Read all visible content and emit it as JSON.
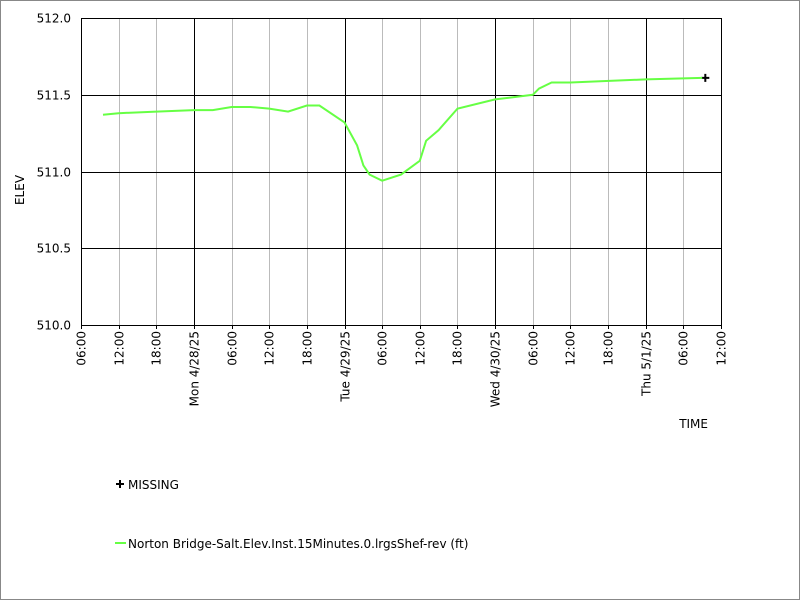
{
  "chart_data": {
    "type": "line",
    "x_label": "TIME",
    "y_label": "ELEV",
    "xlim": [
      "2025-04-27T06:00",
      "2025-05-01T12:00"
    ],
    "ylim": [
      510.0,
      512.0
    ],
    "yticks": [
      {
        "value": 510.0,
        "label": "510.0"
      },
      510.5,
      {
        "value": 511.0,
        "label": "511.0"
      },
      511.5,
      {
        "value": 512.0,
        "label": "512.0"
      }
    ],
    "xticks": [
      {
        "value": "2025-04-27T06:00",
        "label": "06:00"
      },
      {
        "value": "2025-04-27T12:00",
        "label": "12:00"
      },
      {
        "value": "2025-04-27T18:00",
        "label": "18:00"
      },
      {
        "value": "2025-04-28T00:00",
        "label": "Mon 4/28/25"
      },
      {
        "value": "2025-04-28T06:00",
        "label": "06:00"
      },
      {
        "value": "2025-04-28T12:00",
        "label": "12:00"
      },
      {
        "value": "2025-04-28T18:00",
        "label": "18:00"
      },
      {
        "value": "2025-04-29T00:00",
        "label": "Tue 4/29/25"
      },
      {
        "value": "2025-04-29T06:00",
        "label": "06:00"
      },
      {
        "value": "2025-04-29T12:00",
        "label": "12:00"
      },
      {
        "value": "2025-04-29T18:00",
        "label": "18:00"
      },
      {
        "value": "2025-04-30T00:00",
        "label": "Wed 4/30/25"
      },
      {
        "value": "2025-04-30T06:00",
        "label": "06:00"
      },
      {
        "value": "2025-04-30T12:00",
        "label": "12:00"
      },
      {
        "value": "2025-04-30T18:00",
        "label": "18:00"
      },
      {
        "value": "2025-05-01T00:00",
        "label": "Thu 5/1/25"
      },
      {
        "value": "2025-05-01T06:00",
        "label": "06:00"
      },
      {
        "value": "2025-05-01T12:00",
        "label": "12:00"
      }
    ],
    "grid": true,
    "series": [
      {
        "name": "MISSING",
        "color": "#000000",
        "marker": "plus",
        "x": [
          "2025-05-01T09:30"
        ],
        "values": [
          511.61
        ]
      },
      {
        "name": "Norton Bridge-Salt.Elev.Inst.15Minutes.0.lrgsShef-rev (ft)",
        "color": "#66ff44",
        "marker": "line",
        "x": [
          "2025-04-27T09:30",
          "2025-04-27T12:00",
          "2025-04-27T18:00",
          "2025-04-28T00:00",
          "2025-04-28T03:00",
          "2025-04-28T06:00",
          "2025-04-28T09:00",
          "2025-04-28T12:00",
          "2025-04-28T15:00",
          "2025-04-28T18:00",
          "2025-04-28T20:00",
          "2025-04-29T00:00",
          "2025-04-29T02:00",
          "2025-04-29T03:00",
          "2025-04-29T04:00",
          "2025-04-29T06:00",
          "2025-04-29T09:00",
          "2025-04-29T12:00",
          "2025-04-29T13:00",
          "2025-04-29T15:00",
          "2025-04-29T18:00",
          "2025-04-30T00:00",
          "2025-04-30T06:00",
          "2025-04-30T07:00",
          "2025-04-30T09:00",
          "2025-04-30T12:00",
          "2025-05-01T00:00",
          "2025-05-01T09:00"
        ],
        "values": [
          511.37,
          511.38,
          511.39,
          511.4,
          511.4,
          511.42,
          511.42,
          511.41,
          511.39,
          511.43,
          511.43,
          511.32,
          511.17,
          511.04,
          510.98,
          510.94,
          510.98,
          511.07,
          511.2,
          511.27,
          511.41,
          511.47,
          511.5,
          511.54,
          511.58,
          511.58,
          511.6,
          511.61
        ]
      }
    ]
  }
}
